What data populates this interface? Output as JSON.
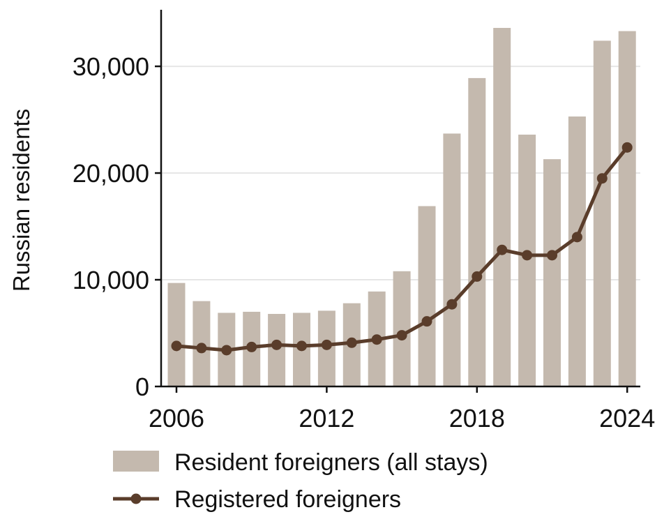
{
  "chart_data": {
    "type": "bar+line",
    "title": "",
    "xlabel": "",
    "ylabel": "Russian residents",
    "x": [
      2006,
      2007,
      2008,
      2009,
      2010,
      2011,
      2012,
      2013,
      2014,
      2015,
      2016,
      2017,
      2018,
      2019,
      2020,
      2021,
      2022,
      2023,
      2024
    ],
    "x_ticks": [
      2006,
      2012,
      2018,
      2024
    ],
    "x_tick_labels": [
      "2006",
      "2012",
      "2018",
      "2024"
    ],
    "y_ticks": [
      0,
      10000,
      20000,
      30000
    ],
    "y_tick_labels": [
      "0",
      "10,000",
      "20,000",
      "30,000"
    ],
    "ylim": [
      0,
      35300
    ],
    "grid": "horizontal",
    "legend_position": "bottom",
    "series": [
      {
        "name": "Resident foreigners (all stays)",
        "kind": "bar",
        "color": "#c4b9ae",
        "values": [
          9700,
          8000,
          6900,
          7000,
          6800,
          6900,
          7100,
          7800,
          8900,
          10800,
          16900,
          23700,
          28900,
          33600,
          23600,
          21300,
          25300,
          32400,
          33300
        ]
      },
      {
        "name": "Registered foreigners",
        "kind": "line",
        "color": "#5a3d2b",
        "values": [
          3800,
          3600,
          3400,
          3700,
          3900,
          3800,
          3900,
          4100,
          4400,
          4800,
          6100,
          7700,
          10300,
          12800,
          12300,
          12300,
          14000,
          19500,
          22400
        ]
      }
    ]
  }
}
